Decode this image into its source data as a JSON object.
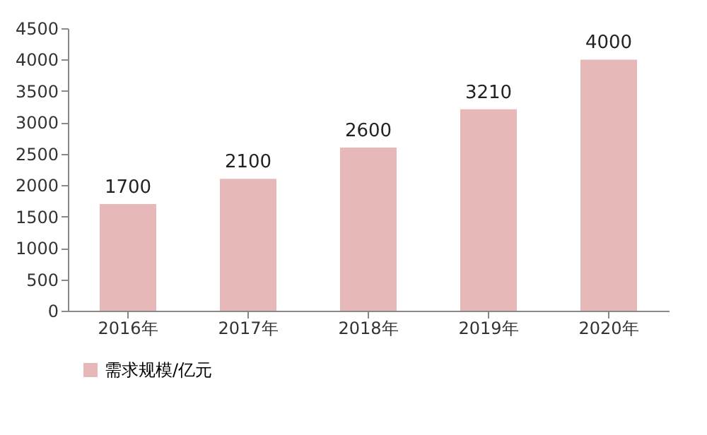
{
  "chart_data": {
    "type": "bar",
    "categories": [
      "2016年",
      "2017年",
      "2018年",
      "2019年",
      "2020年"
    ],
    "series": [
      {
        "name": "需求规模/亿元",
        "color": "#e6b9b8",
        "values": [
          1700,
          2100,
          2600,
          3210,
          4000
        ]
      }
    ],
    "ylim": [
      0,
      4500
    ],
    "yticks": [
      0,
      500,
      1000,
      1500,
      2000,
      2500,
      3000,
      3500,
      4000,
      4500
    ],
    "grid": false,
    "legend": "bottom left",
    "data_labels": true
  }
}
